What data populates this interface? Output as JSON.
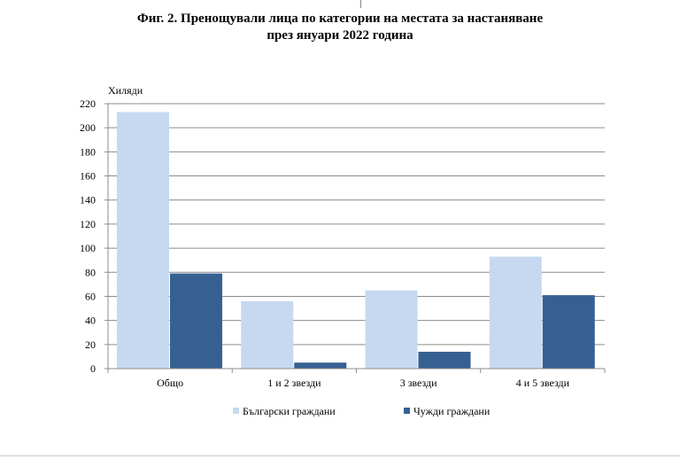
{
  "title_line1": "Фиг. 2. Пренощували лица по категории на местата за настаняване",
  "title_line2": "през януари 2022 година",
  "chart_data": {
    "type": "bar",
    "unit_label": "Хиляди",
    "categories": [
      "Общо",
      "1 и 2 звезди",
      "3 звезди",
      "4 и 5 звезди"
    ],
    "series": [
      {
        "name": "Български граждани",
        "color": "#c6d9f1",
        "values": [
          213,
          56,
          65,
          93
        ]
      },
      {
        "name": "Чужди граждани",
        "color": "#376092",
        "values": [
          79,
          5,
          14,
          61
        ]
      }
    ],
    "ylim": [
      0,
      220
    ],
    "yticks": [
      0,
      20,
      40,
      60,
      80,
      100,
      120,
      140,
      160,
      180,
      200,
      220
    ],
    "grid": true,
    "legend_position": "bottom"
  }
}
